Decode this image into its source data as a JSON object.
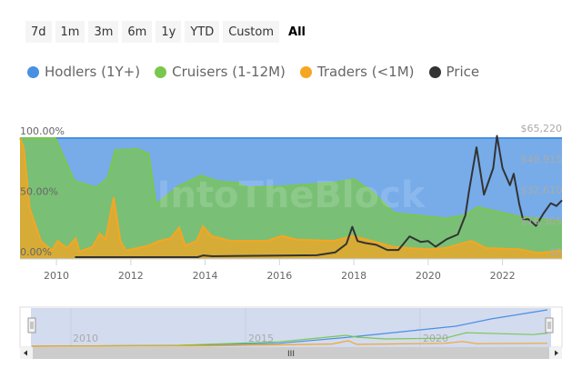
{
  "range_buttons": [
    "7d",
    "1m",
    "3m",
    "6m",
    "1y",
    "YTD",
    "Custom",
    "All"
  ],
  "active_range": "All",
  "legend": [
    {
      "label": "Hodlers (1Y+)",
      "color": "#4a90e2"
    },
    {
      "label": "Cruisers (1-12M)",
      "color": "#7ac74f"
    },
    {
      "label": "Traders (<1M)",
      "color": "#f5a623"
    },
    {
      "label": "Price",
      "color": "#333333"
    }
  ],
  "watermark": "IntoTheBlock",
  "navigator": {
    "labels": [
      "2010",
      "2015",
      "2020"
    ],
    "scroll_grip": "III"
  },
  "chart_data": {
    "type": "area",
    "stacking": "percent",
    "title": "",
    "x_ticks": [
      "2010",
      "2012",
      "2014",
      "2016",
      "2018",
      "2020",
      "2022"
    ],
    "xlim": [
      2009.02,
      2023.6
    ],
    "y_left_ticks": [
      "0.00%",
      "50.00%",
      "100.00%"
    ],
    "ylim_left": [
      0,
      100
    ],
    "y_right_ticks": [
      "$0",
      "$16,305",
      "$32,610",
      "$48,915",
      "$65,220"
    ],
    "ylim_right": [
      0,
      65220
    ],
    "grid": false,
    "legend_position": "top",
    "series": [
      {
        "name": "Traders (<1M)",
        "color": "#f5a623",
        "cumulative_top": [
          [
            2009.02,
            100
          ],
          [
            2009.12,
            92
          ],
          [
            2009.28,
            42
          ],
          [
            2009.58,
            15
          ],
          [
            2009.88,
            7
          ],
          [
            2010.03,
            15
          ],
          [
            2010.28,
            9
          ],
          [
            2010.52,
            17
          ],
          [
            2010.62,
            6
          ],
          [
            2010.97,
            10
          ],
          [
            2011.17,
            21
          ],
          [
            2011.32,
            16
          ],
          [
            2011.54,
            51
          ],
          [
            2011.72,
            15
          ],
          [
            2011.87,
            7
          ],
          [
            2012.47,
            11
          ],
          [
            2012.77,
            15
          ],
          [
            2013.07,
            17
          ],
          [
            2013.3,
            26
          ],
          [
            2013.47,
            11
          ],
          [
            2013.77,
            15
          ],
          [
            2013.94,
            27
          ],
          [
            2014.17,
            19
          ],
          [
            2014.67,
            15
          ],
          [
            2015.67,
            15
          ],
          [
            2016.07,
            19
          ],
          [
            2016.47,
            16
          ],
          [
            2017.47,
            15
          ],
          [
            2017.97,
            19
          ],
          [
            2018.47,
            15
          ],
          [
            2019.07,
            10
          ],
          [
            2019.97,
            8
          ],
          [
            2020.47,
            9
          ],
          [
            2021.16,
            15
          ],
          [
            2021.56,
            9
          ],
          [
            2022.46,
            8
          ],
          [
            2022.96,
            5
          ],
          [
            2023.6,
            7
          ]
        ]
      },
      {
        "name": "Cruisers (1-12M)",
        "color": "#7ac74f",
        "cumulative_top": [
          [
            2009.02,
            100
          ],
          [
            2009.97,
            100
          ],
          [
            2010.48,
            64.5
          ],
          [
            2011.08,
            59
          ],
          [
            2011.38,
            67
          ],
          [
            2011.58,
            90
          ],
          [
            2012.18,
            91
          ],
          [
            2012.48,
            87
          ],
          [
            2012.68,
            45
          ],
          [
            2013.28,
            60
          ],
          [
            2013.88,
            69
          ],
          [
            2014.38,
            64
          ],
          [
            2014.88,
            63
          ],
          [
            2015.08,
            59
          ],
          [
            2015.98,
            60
          ],
          [
            2017.48,
            63
          ],
          [
            2018.0,
            66
          ],
          [
            2018.48,
            56
          ],
          [
            2019.08,
            38
          ],
          [
            2020.48,
            33.5
          ],
          [
            2020.98,
            36
          ],
          [
            2021.33,
            43
          ],
          [
            2022.45,
            35
          ],
          [
            2023.6,
            31
          ]
        ]
      },
      {
        "name": "Hodlers (1Y+)",
        "color": "#4a90e2",
        "cumulative_top": [
          [
            2009.02,
            100
          ],
          [
            2023.6,
            100
          ]
        ]
      }
    ],
    "price_series": {
      "name": "Price",
      "color": "#333333",
      "axis": "right",
      "points": [
        [
          2010.5,
          0
        ],
        [
          2013.8,
          0
        ],
        [
          2013.95,
          900
        ],
        [
          2014.2,
          500
        ],
        [
          2017.0,
          1000
        ],
        [
          2017.5,
          2500
        ],
        [
          2017.8,
          7000
        ],
        [
          2017.96,
          16000
        ],
        [
          2018.1,
          8500
        ],
        [
          2018.3,
          7500
        ],
        [
          2018.6,
          6500
        ],
        [
          2018.9,
          3800
        ],
        [
          2019.2,
          3800
        ],
        [
          2019.5,
          11000
        ],
        [
          2019.8,
          8000
        ],
        [
          2020.0,
          8500
        ],
        [
          2020.2,
          5500
        ],
        [
          2020.5,
          9500
        ],
        [
          2020.8,
          12000
        ],
        [
          2021.0,
          22000
        ],
        [
          2021.1,
          35000
        ],
        [
          2021.3,
          58000
        ],
        [
          2021.5,
          33000
        ],
        [
          2021.75,
          47000
        ],
        [
          2021.85,
          64000
        ],
        [
          2022.0,
          47000
        ],
        [
          2022.2,
          38000
        ],
        [
          2022.3,
          44000
        ],
        [
          2022.45,
          28000
        ],
        [
          2022.55,
          20000
        ],
        [
          2022.7,
          20000
        ],
        [
          2022.9,
          16500
        ],
        [
          2023.1,
          23000
        ],
        [
          2023.3,
          28500
        ],
        [
          2023.45,
          27000
        ],
        [
          2023.6,
          30000
        ]
      ]
    }
  }
}
